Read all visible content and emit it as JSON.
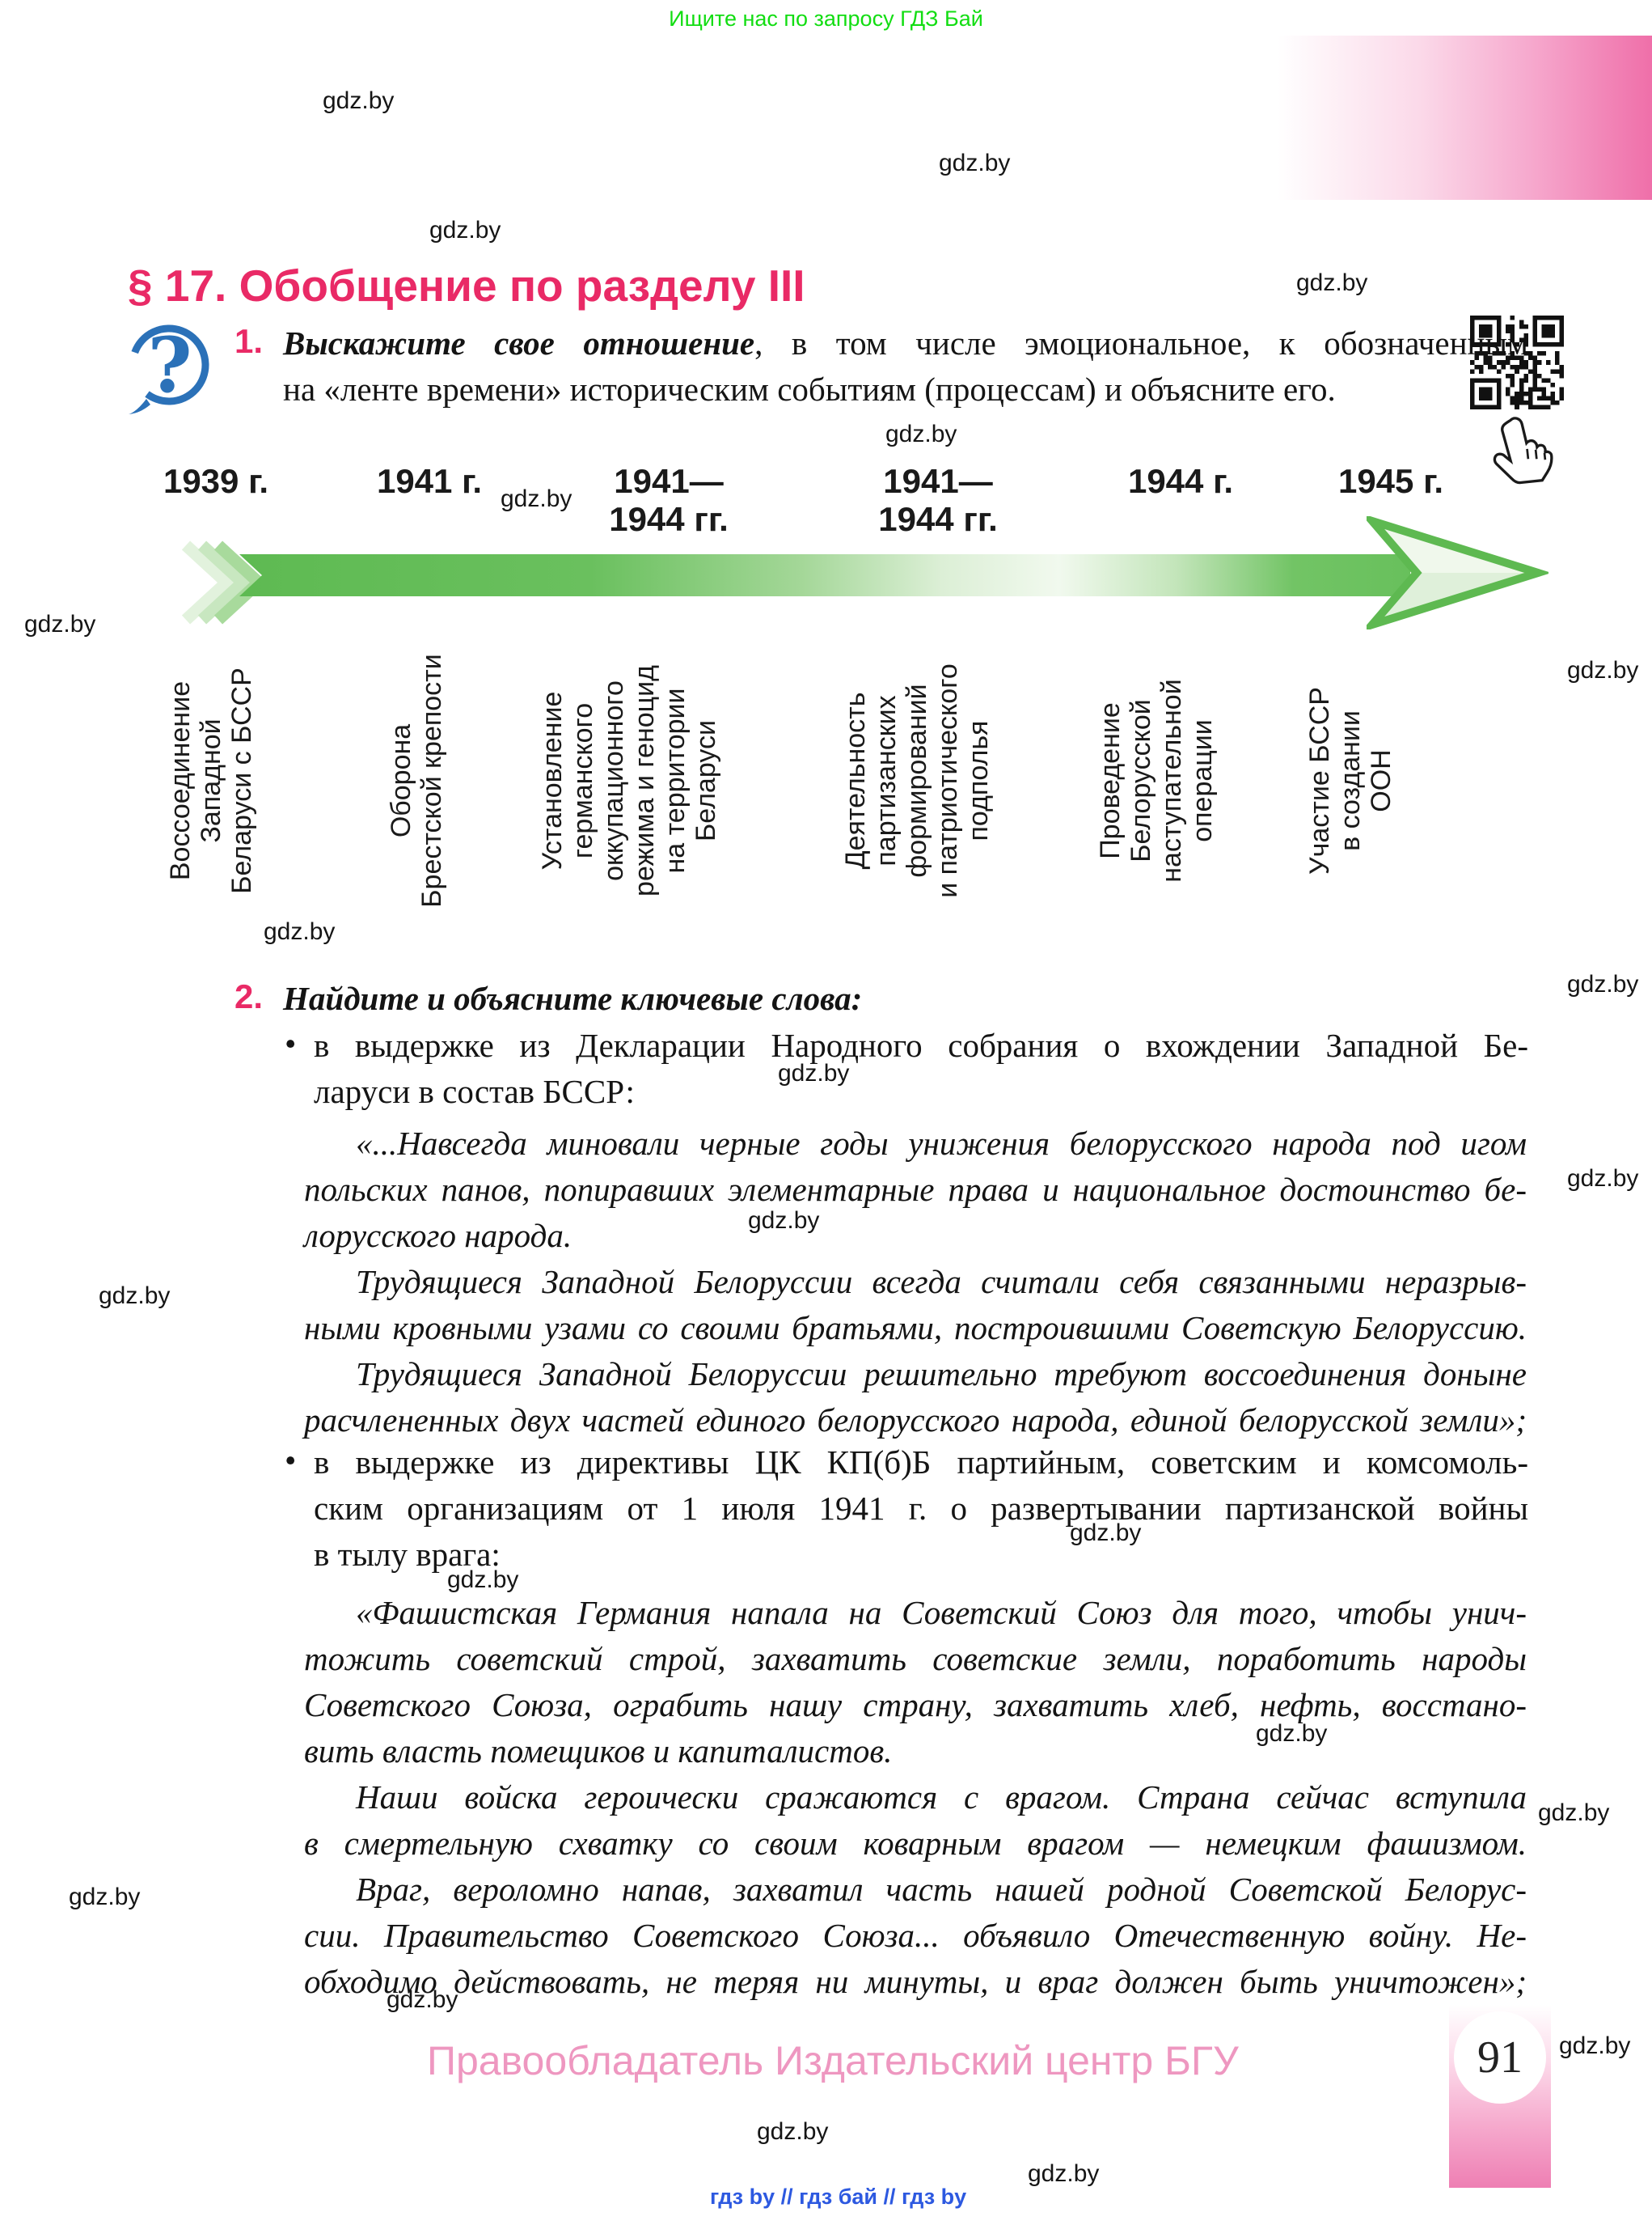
{
  "page": {
    "promo": "Ищите нас по запросу ГДЗ Бай",
    "watermark": "gdz.by",
    "title": "§ 17. Обобщение по разделу III",
    "footer": "Правообладатель Издательский центр БГУ",
    "page_number": "91",
    "bottom_links": "гдз by  //  гдз бай  //  гдз by"
  },
  "colors": {
    "accent_pink": "#e92a66",
    "footer_pink": "#ee97c0",
    "promo_green": "#12dd12",
    "link_blue": "#2d59e0",
    "arrow_green": "#5eba52",
    "icon_blue": "#2b71b8"
  },
  "question1": {
    "number": "1.",
    "lead_bold_italic": "Выскажите свое отношение",
    "line1_rest": ", в том числе эмоциональное, к обозначенным",
    "line2": "на «ленте времени» историческим событиям (процессам) и объясните его."
  },
  "timeline": {
    "years": [
      "1939 г.",
      "1941 г.",
      "1941—\n1944 гг.",
      "1941—\n1944 гг.",
      "1944 г.",
      "1945 г."
    ],
    "events": [
      "Воссоединение\nЗападной\nБеларуси с БССР",
      "Оборона\nБрестской крепости",
      "Установление\nгерманского\nоккупационного\nрежима и геноцид\nна территории\nБеларуси",
      "Деятельность\nпартизанских\nформирований\nи патриотического\nподполья",
      "Проведение\nБелорусской\nнаступательной\nоперации",
      "Участие БССР\nв создании\nООН"
    ]
  },
  "question2": {
    "number": "2.",
    "heading": "Найдите и объясните ключевые слова:",
    "bullet_glyph": "•",
    "bullet1": {
      "line1": "в выдержке из Декларации Народного собрания о вхождении Западной Бе-",
      "line2": "ларуси в состав БССР:"
    },
    "quote1": {
      "line1": "«...Навсегда миновали черные годы унижения белорусского народа под игом",
      "line2": "польских панов, попиравших элементарные права и национальное достоинство бе-",
      "line3": "лорусского народа.",
      "line4": "Трудящиеся Западной Белоруссии всегда считали себя связанными неразрыв-",
      "line5": "ными кровными узами со своими братьями, построившими Советскую Белоруссию.",
      "line6": "Трудящиеся Западной Белоруссии решительно требуют воссоединения доныне",
      "line7": "расчлененных двух частей единого белорусского народа, единой белорусской земли»;"
    },
    "bullet2": {
      "line1": "в выдержке из директивы ЦК КП(б)Б партийным, советским и комсомоль-",
      "line2": "ским организациям от 1 июля 1941 г. о развертывании партизанской войны",
      "line3": "в тылу врага:"
    },
    "quote2": {
      "line1": "«Фашистская Германия напала на Советский Союз для того, чтобы унич-",
      "line2": "тожить советский строй, захватить советские земли, поработить народы",
      "line3": "Советского Союза, ограбить нашу страну, захватить хлеб, нефть, восстано-",
      "line4": "вить власть помещиков и капиталистов.",
      "line5": "Наши войска героически сражаются с врагом. Страна сейчас вступила",
      "line6": "в смертельную схватку со своим коварным врагом — немецким фашизмом.",
      "line7": "Враг, вероломно напав, захватил часть нашей родной Советской Белорус-",
      "line8": "сии. Правительство Советского Союза... объявило Отечественную войну. Не-",
      "line9": "обходимо действовать, не теряя ни минуты, и враг должен быть уничтожен»;"
    }
  }
}
